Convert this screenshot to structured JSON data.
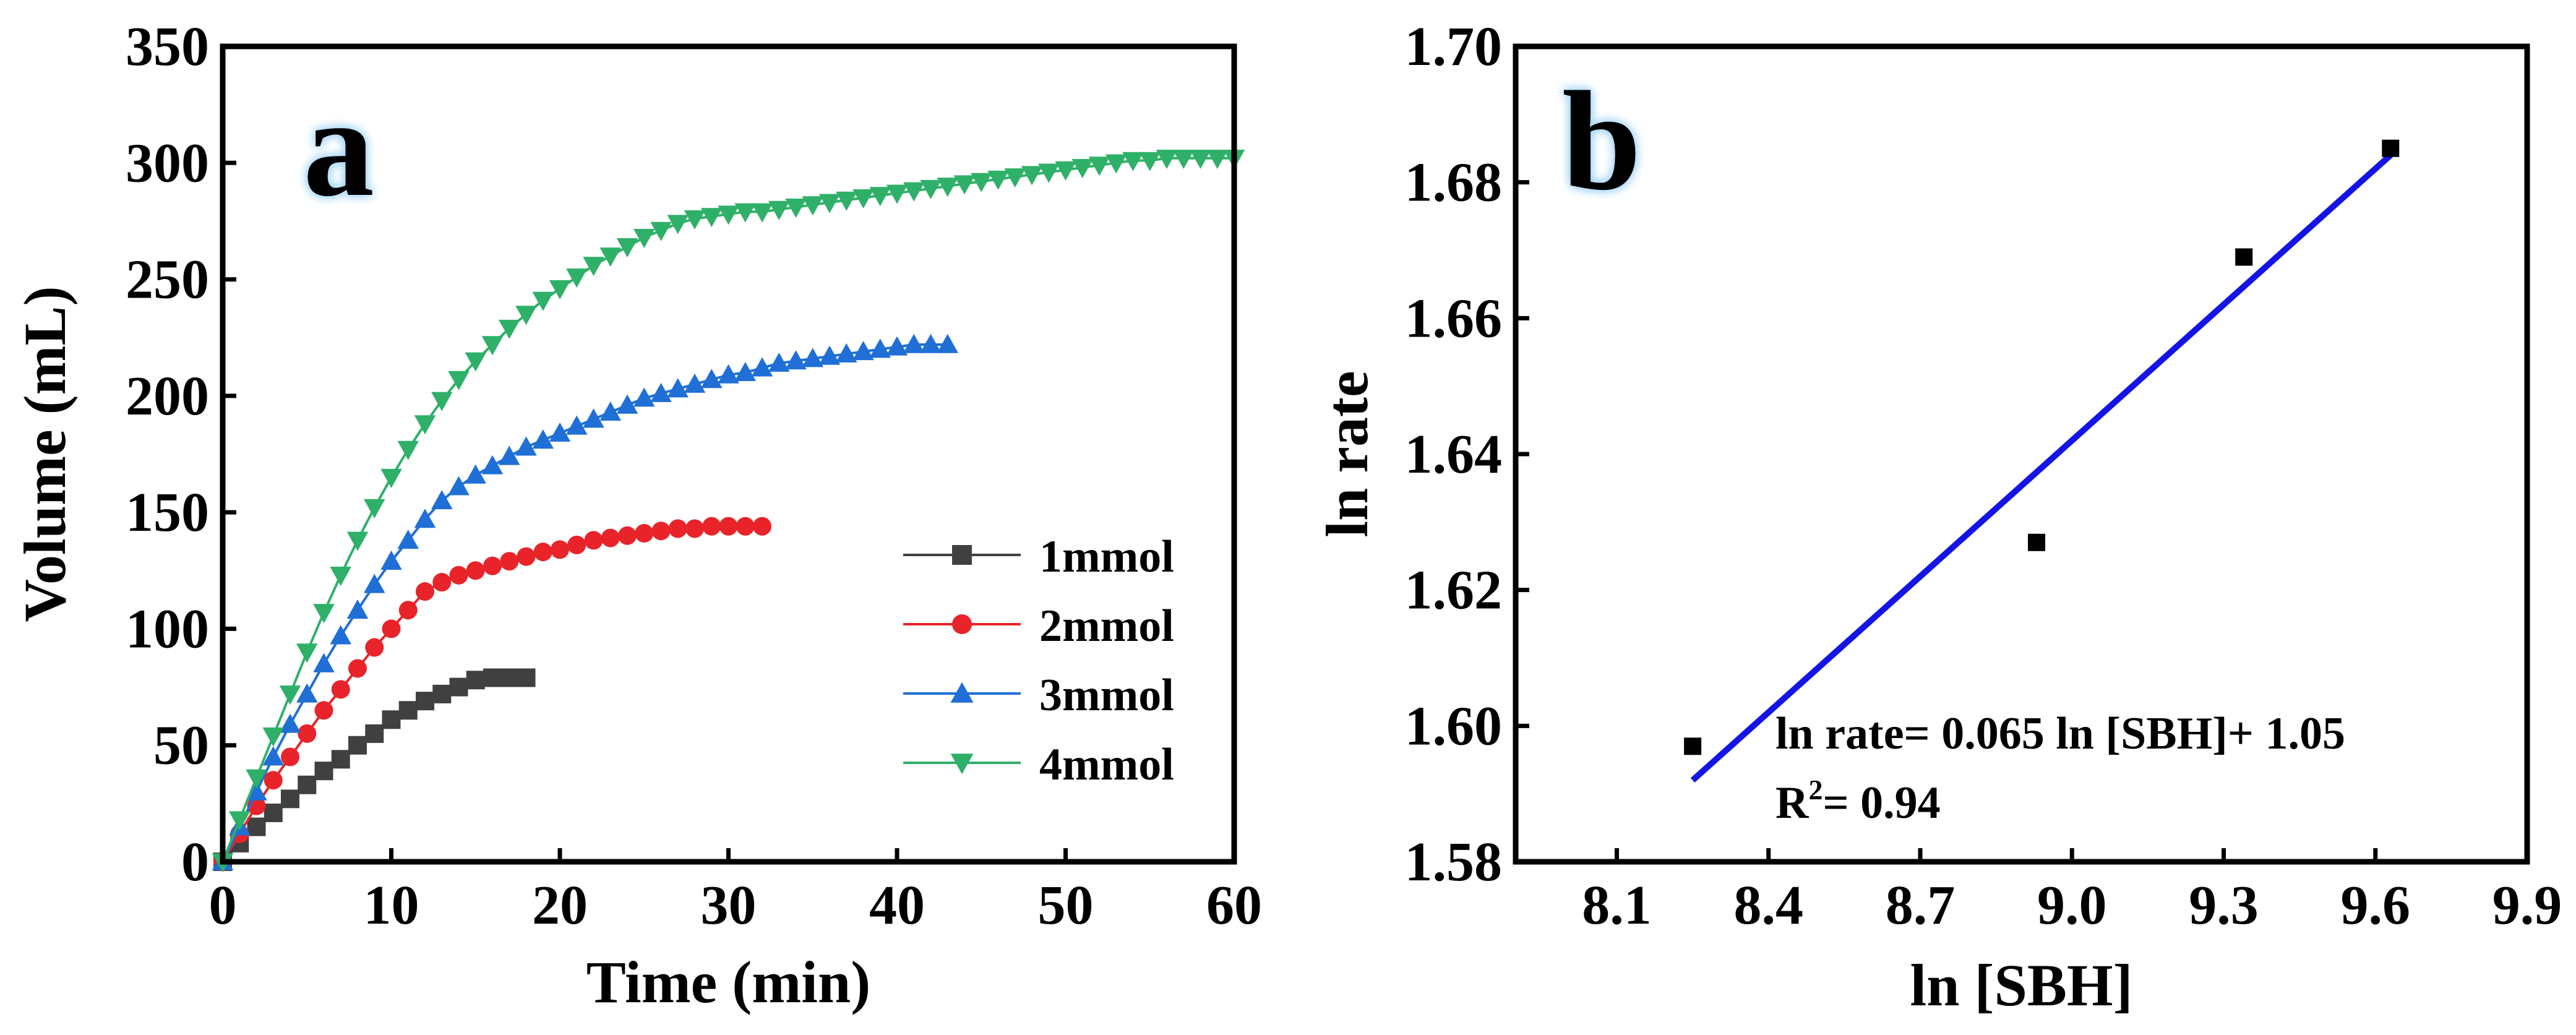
{
  "chart_data": [
    {
      "id": "a",
      "type": "line",
      "panel_label": "a",
      "title": "",
      "xlabel": "Time (min)",
      "ylabel": "Volume (mL)",
      "xlim": [
        0,
        60
      ],
      "ylim": [
        0,
        350
      ],
      "xticks": [
        0,
        10,
        20,
        30,
        40,
        50,
        60
      ],
      "yticks": [
        0,
        50,
        100,
        150,
        200,
        250,
        300,
        350
      ],
      "legend_position": "center-right",
      "series": [
        {
          "name": "1mmol",
          "color": "#404040",
          "marker": "square",
          "x": [
            0,
            1,
            2,
            3,
            4,
            5,
            6,
            7,
            8,
            9,
            10,
            11,
            12,
            13,
            14,
            15,
            16,
            17,
            18
          ],
          "y": [
            0,
            8,
            15,
            21,
            27,
            33,
            39,
            44,
            50,
            55,
            61,
            65,
            69,
            72,
            75,
            78,
            79,
            79,
            79
          ]
        },
        {
          "name": "2mmol",
          "color": "#e8242a",
          "marker": "circle",
          "x": [
            0,
            1,
            2,
            3,
            4,
            5,
            6,
            7,
            8,
            9,
            10,
            11,
            12,
            13,
            14,
            15,
            16,
            17,
            18,
            19,
            20,
            21,
            22,
            23,
            24,
            25,
            26,
            27,
            28,
            29,
            30,
            31,
            32
          ],
          "y": [
            0,
            12,
            24,
            35,
            45,
            55,
            65,
            74,
            83,
            92,
            100,
            108,
            116,
            120,
            123,
            125,
            127,
            129,
            131,
            133,
            134,
            136,
            138,
            139,
            140,
            141,
            142,
            143,
            143,
            144,
            144,
            144,
            144
          ]
        },
        {
          "name": "3mmol",
          "color": "#1f6fd6",
          "marker": "triangle-up",
          "x": [
            0,
            1,
            2,
            3,
            4,
            5,
            6,
            7,
            8,
            9,
            10,
            11,
            12,
            13,
            14,
            15,
            16,
            17,
            18,
            19,
            20,
            21,
            22,
            23,
            24,
            25,
            26,
            27,
            28,
            29,
            30,
            31,
            32,
            33,
            34,
            35,
            36,
            37,
            38,
            39,
            40,
            41,
            42,
            43
          ],
          "y": [
            0,
            15,
            30,
            45,
            59,
            72,
            85,
            97,
            108,
            119,
            129,
            138,
            147,
            155,
            161,
            166,
            170,
            174,
            178,
            181,
            184,
            187,
            190,
            193,
            196,
            199,
            201,
            203,
            205,
            207,
            209,
            210,
            212,
            214,
            215,
            216,
            217,
            218,
            219,
            220,
            221,
            222,
            222,
            222
          ]
        },
        {
          "name": "4mmol",
          "color": "#2fb069",
          "marker": "triangle-down",
          "x": [
            0,
            1,
            2,
            3,
            4,
            5,
            6,
            7,
            8,
            9,
            10,
            11,
            12,
            13,
            14,
            15,
            16,
            17,
            18,
            19,
            20,
            21,
            22,
            23,
            24,
            25,
            26,
            27,
            28,
            29,
            30,
            31,
            32,
            33,
            34,
            35,
            36,
            37,
            38,
            39,
            40,
            41,
            42,
            43,
            44,
            45,
            46,
            47,
            48,
            49,
            50,
            51,
            52,
            53,
            54,
            55,
            56,
            57,
            58,
            59,
            60
          ],
          "y": [
            0,
            18,
            36,
            54,
            72,
            90,
            107,
            123,
            138,
            152,
            165,
            177,
            188,
            198,
            207,
            215,
            222,
            229,
            235,
            241,
            246,
            251,
            256,
            260,
            264,
            268,
            271,
            274,
            276,
            277,
            278,
            279,
            279,
            280,
            281,
            282,
            283,
            284,
            285,
            286,
            287,
            288,
            289,
            290,
            291,
            292,
            293,
            294,
            295,
            296,
            297,
            298,
            299,
            300,
            301,
            301,
            302,
            302,
            302,
            302,
            302
          ]
        }
      ]
    },
    {
      "id": "b",
      "type": "scatter",
      "panel_label": "b",
      "title": "",
      "xlabel": "ln [SBH]",
      "ylabel": "ln rate",
      "xlim": [
        7.9,
        9.9
      ],
      "ylim": [
        1.58,
        1.7
      ],
      "xticks": [
        "8.1",
        "8.4",
        "8.7",
        "9.0",
        "9.3",
        "9.6",
        "9.9"
      ],
      "yticks": [
        "1.58",
        "1.60",
        "1.62",
        "1.64",
        "1.66",
        "1.68",
        "1.70"
      ],
      "points": {
        "color": "#000000",
        "marker": "square",
        "x": [
          8.25,
          8.93,
          9.34,
          9.63
        ],
        "y": [
          1.597,
          1.627,
          1.669,
          1.685
        ]
      },
      "fit_line": {
        "color": "#1414e6",
        "x": [
          8.25,
          9.63
        ],
        "y": [
          1.592,
          1.684
        ]
      },
      "annotation_equation": "ln rate= 0.065 ln [SBH]+ 1.05",
      "annotation_r2_prefix": "R",
      "annotation_r2_sup": "2",
      "annotation_r2_value": "= 0.94"
    }
  ]
}
